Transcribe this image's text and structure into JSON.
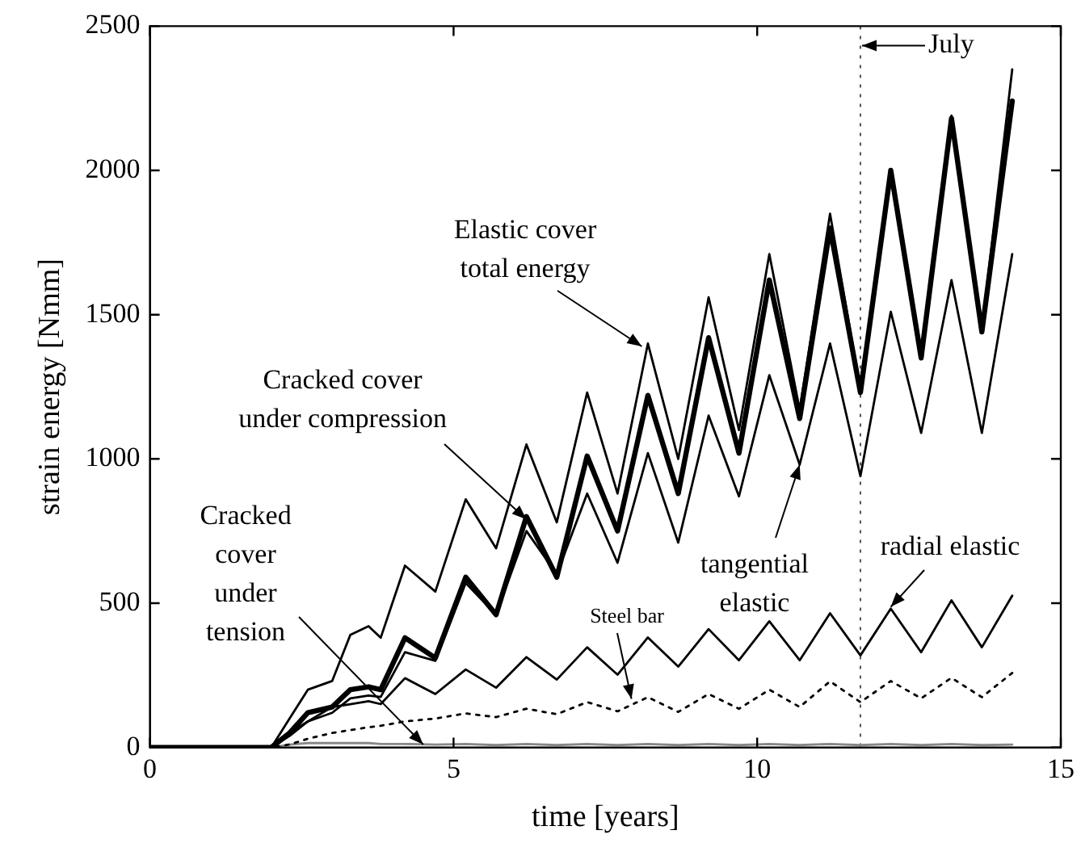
{
  "chart_data": {
    "type": "line",
    "xlabel": "time [years]",
    "ylabel": "strain energy [Nmm]",
    "x": [
      0,
      2,
      2.3,
      2.6,
      3.0,
      3.3,
      3.6,
      3.8,
      4.2,
      4.7,
      5.2,
      5.7,
      6.2,
      6.7,
      7.2,
      7.7,
      8.2,
      8.7,
      9.2,
      9.7,
      10.2,
      10.7,
      11.2,
      11.7,
      12.2,
      12.7,
      13.2,
      13.7,
      14.2
    ],
    "series": [
      {
        "color": "#000000",
        "values": [
          0,
          0,
          100,
          200,
          230,
          390,
          420,
          380,
          630,
          540,
          860,
          690,
          1050,
          780,
          1230,
          880,
          1400,
          1000,
          1560,
          1100,
          1710,
          1170,
          1850,
          1240,
          2000,
          1360,
          2190,
          1450,
          2350
        ]
      },
      {
        "color": "#000000",
        "values": [
          0,
          0,
          50,
          120,
          140,
          200,
          210,
          200,
          380,
          310,
          590,
          460,
          800,
          590,
          1010,
          750,
          1220,
          880,
          1420,
          1020,
          1620,
          1140,
          1800,
          1230,
          2000,
          1350,
          2180,
          1440,
          2240
        ]
      },
      {
        "color": "#000000",
        "values": [
          0,
          0,
          40,
          90,
          120,
          170,
          180,
          175,
          330,
          300,
          570,
          460,
          750,
          600,
          880,
          640,
          1020,
          710,
          1150,
          870,
          1290,
          980,
          1400,
          940,
          1510,
          1090,
          1620,
          1090,
          1710
        ]
      },
      {
        "color": "#000000",
        "values": [
          0,
          0,
          50,
          90,
          140,
          150,
          160,
          150,
          240,
          185,
          270,
          207,
          313,
          235,
          347,
          252,
          381,
          280,
          410,
          302,
          437,
          302,
          465,
          319,
          481,
          330,
          510,
          347,
          526
        ]
      },
      {
        "color": "#000000",
        "line_style": "dotted",
        "values": [
          0,
          0,
          10,
          30,
          50,
          60,
          70,
          75,
          90,
          100,
          118,
          105,
          134,
          115,
          157,
          125,
          174,
          123,
          185,
          134,
          200,
          140,
          229,
          157,
          230,
          170,
          241,
          174,
          258
        ]
      },
      {
        "color": "#888888",
        "values": [
          0,
          0,
          10,
          15,
          15,
          15,
          15,
          12,
          12,
          10,
          12,
          8,
          12,
          8,
          12,
          8,
          12,
          8,
          12,
          8,
          12,
          8,
          12,
          8,
          12,
          8,
          12,
          8,
          10
        ]
      }
    ],
    "xlim": [
      0,
      15
    ],
    "xticks": [
      0,
      5,
      10,
      15
    ],
    "ylim": [
      0,
      2500
    ],
    "yticks": [
      0,
      500,
      1000,
      1500,
      2000,
      2500
    ],
    "grid": false,
    "legend": false,
    "marker": "none",
    "line_style": "solid",
    "ref_lines": [
      {
        "axis": "x",
        "value": 11.7,
        "label": "July",
        "line_style": "dotted",
        "color": "#555555"
      }
    ],
    "annotations": [
      {
        "text": "Elastic cover\ntotal energy",
        "x": 8.1,
        "y": 1390
      },
      {
        "text": "Cracked cover\nunder compression",
        "x": 6.2,
        "y": 790
      },
      {
        "text": "Cracked\ncover\nunder\ntension",
        "x": 4.5,
        "y": 10
      },
      {
        "text": "Steel bar",
        "x": 7.93,
        "y": 168
      },
      {
        "text": "tangential\nelastic",
        "x": 10.7,
        "y": 980
      },
      {
        "text": "radial elastic",
        "x": 12.2,
        "y": 487
      }
    ]
  }
}
